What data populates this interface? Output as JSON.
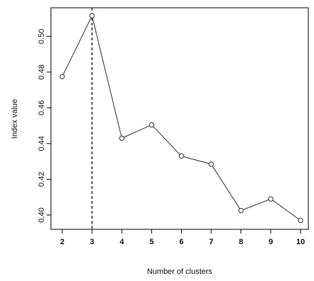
{
  "chart_data": {
    "type": "line",
    "xlabel": "Number of clusters",
    "ylabel": "Index value",
    "x": [
      2,
      3,
      4,
      5,
      6,
      7,
      8,
      9,
      10
    ],
    "series": [
      {
        "values": [
          0.4775,
          0.5115,
          0.443,
          0.4505,
          0.433,
          0.4285,
          0.4025,
          0.409,
          0.397
        ]
      }
    ],
    "xlim": [
      2,
      10
    ],
    "ylim": [
      0.392,
      0.516
    ],
    "xticks": [
      "2",
      "3",
      "4",
      "5",
      "6",
      "7",
      "8",
      "9",
      "10"
    ],
    "yticks": [
      "0.40",
      "0.42",
      "0.44",
      "0.46",
      "0.48",
      "0.50"
    ],
    "reference_line": {
      "x": 3,
      "style": "dashed"
    },
    "marker": "open-circle",
    "grid": false,
    "colors": {
      "line": "#333333",
      "marker": "#333333",
      "axis": "#000000"
    }
  }
}
